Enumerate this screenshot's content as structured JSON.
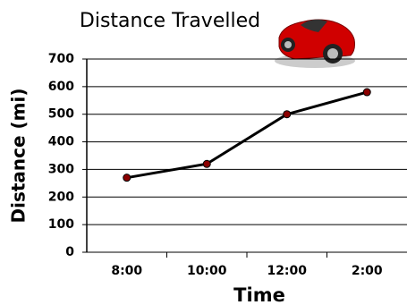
{
  "chart_data": {
    "type": "line",
    "title": "Distance Travelled",
    "x_label": "Time",
    "y_label": "Distance (mi)",
    "categories": [
      "8:00",
      "10:00",
      "12:00",
      "2:00"
    ],
    "values": [
      270,
      320,
      500,
      580
    ],
    "color": "#000000",
    "marker_color": "#8b0000",
    "ylim": [
      0,
      700
    ],
    "yticks": [
      0,
      100,
      200,
      300,
      400,
      500,
      600,
      700
    ],
    "grid": true
  }
}
